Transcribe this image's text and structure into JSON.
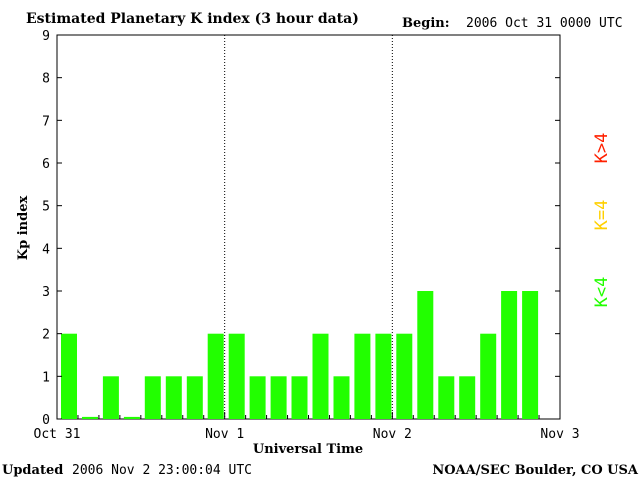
{
  "header": {
    "title": "Estimated Planetary K index (3 hour data)",
    "begin_label": "Begin:",
    "begin_value": "2006 Oct 31 0000 UTC"
  },
  "footer": {
    "updated_label": "Updated",
    "updated_value": "2006 Nov  2 23:00:04 UTC",
    "source": "NOAA/SEC Boulder, CO USA"
  },
  "legend": {
    "above": {
      "text": "K>4",
      "color": "#ff2000"
    },
    "equal": {
      "text": "K=4",
      "color": "#ffd000"
    },
    "below": {
      "text": "K<4",
      "color": "#22ff00"
    }
  },
  "chart_data": {
    "type": "bar",
    "title": "Estimated Planetary K index (3 hour data)",
    "xlabel": "Universal Time",
    "ylabel": "Kp index",
    "ylim": [
      0,
      9
    ],
    "yticks": [
      "0",
      "1",
      "2",
      "3",
      "4",
      "5",
      "6",
      "7",
      "8",
      "9"
    ],
    "xticks": [
      "Oct 31",
      "Nov 1",
      "Nov 2",
      "Nov 3"
    ],
    "day_separators": [
      "Nov 1",
      "Nov 2"
    ],
    "bar_color": "#22ff00",
    "values": [
      2,
      0.05,
      1,
      0.05,
      1,
      1,
      1,
      2,
      2,
      1,
      1,
      1,
      2,
      1,
      2,
      2,
      2,
      3,
      1,
      1,
      2,
      3,
      3
    ]
  }
}
